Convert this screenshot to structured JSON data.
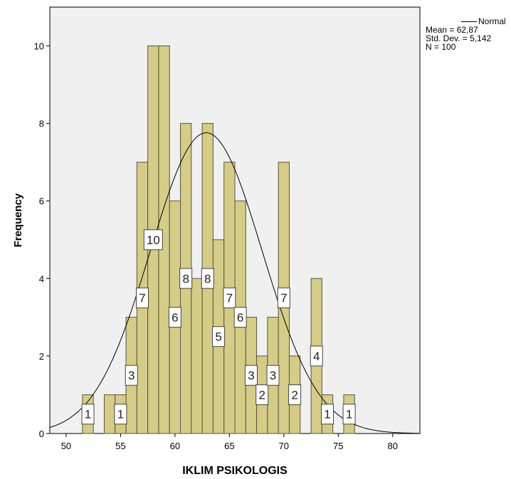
{
  "chart_data": {
    "type": "histogram",
    "xlabel": "IKLIM PSIKOLOGIS",
    "ylabel": "Frequency",
    "xlim": [
      48.5,
      82.5
    ],
    "ylim": [
      0,
      11
    ],
    "x_ticks": [
      50,
      55,
      60,
      65,
      70,
      75,
      80
    ],
    "y_ticks": [
      0,
      2,
      4,
      6,
      8,
      10
    ],
    "bin_width": 1,
    "bins": [
      {
        "x": 52,
        "count": 1,
        "label": "1"
      },
      {
        "x": 54,
        "count": 1,
        "label": ""
      },
      {
        "x": 55,
        "count": 1,
        "label": "1"
      },
      {
        "x": 56,
        "count": 3,
        "label": "3"
      },
      {
        "x": 57,
        "count": 7,
        "label": "7"
      },
      {
        "x": 58,
        "count": 10,
        "label": "10"
      },
      {
        "x": 59,
        "count": 10,
        "label": ""
      },
      {
        "x": 60,
        "count": 6,
        "label": "6"
      },
      {
        "x": 61,
        "count": 8,
        "label": "8"
      },
      {
        "x": 62,
        "count": 4,
        "label": ""
      },
      {
        "x": 63,
        "count": 8,
        "label": "8"
      },
      {
        "x": 64,
        "count": 5,
        "label": "5"
      },
      {
        "x": 65,
        "count": 7,
        "label": "7"
      },
      {
        "x": 66,
        "count": 6,
        "label": "6"
      },
      {
        "x": 67,
        "count": 3,
        "label": "3"
      },
      {
        "x": 68,
        "count": 2,
        "label": "2"
      },
      {
        "x": 69,
        "count": 3,
        "label": "3"
      },
      {
        "x": 70,
        "count": 7,
        "label": "7"
      },
      {
        "x": 71,
        "count": 2,
        "label": "2"
      },
      {
        "x": 73,
        "count": 4,
        "label": "4"
      },
      {
        "x": 74,
        "count": 1,
        "label": "1"
      },
      {
        "x": 76,
        "count": 1,
        "label": "1"
      }
    ],
    "normal_curve": {
      "mean": 62.87,
      "sd": 5.142,
      "n": 100
    },
    "legend": {
      "entry": "Normal",
      "position": "top-right"
    },
    "stats_lines": [
      "Mean = 62,87",
      "Std. Dev. = 5,142",
      "N = 100"
    ]
  },
  "colors": {
    "plot_bg": "#f0f0f0",
    "bar_fill": "#d4cc87",
    "bar_stroke": "#5a5540",
    "curve": "#000000"
  }
}
